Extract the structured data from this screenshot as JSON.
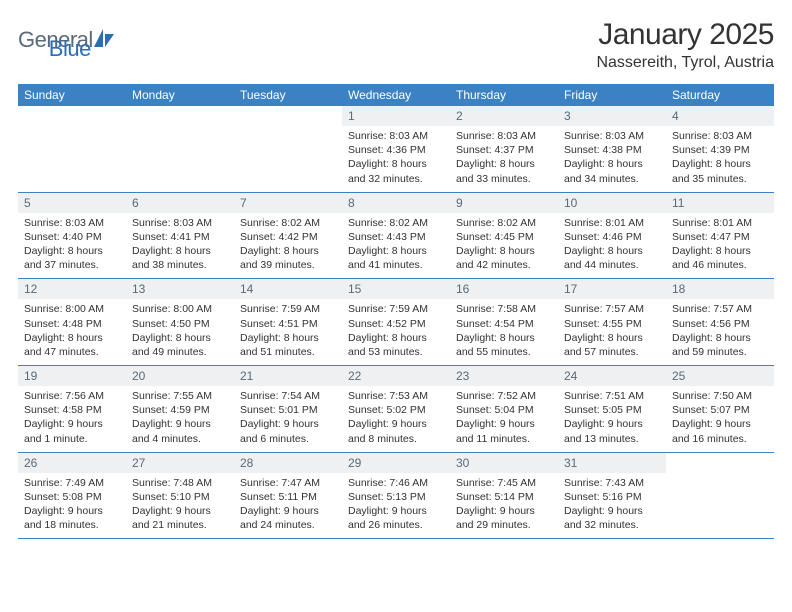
{
  "logo": {
    "text1": "General",
    "text2": "Blue"
  },
  "title": "January 2025",
  "location": "Nassereith, Tyrol, Austria",
  "weekdays": [
    "Sunday",
    "Monday",
    "Tuesday",
    "Wednesday",
    "Thursday",
    "Friday",
    "Saturday"
  ],
  "colors": {
    "header_bg": "#3a82c4",
    "header_text": "#ffffff",
    "daynum_bg": "#eef0f2",
    "daynum_text": "#5a6a78",
    "body_text": "#333333",
    "rule": "#3a82c4"
  },
  "weeks": [
    [
      {
        "n": "",
        "sr": "",
        "ss": "",
        "dl": ""
      },
      {
        "n": "",
        "sr": "",
        "ss": "",
        "dl": ""
      },
      {
        "n": "",
        "sr": "",
        "ss": "",
        "dl": ""
      },
      {
        "n": "1",
        "sr": "8:03 AM",
        "ss": "4:36 PM",
        "dl": "8 hours and 32 minutes."
      },
      {
        "n": "2",
        "sr": "8:03 AM",
        "ss": "4:37 PM",
        "dl": "8 hours and 33 minutes."
      },
      {
        "n": "3",
        "sr": "8:03 AM",
        "ss": "4:38 PM",
        "dl": "8 hours and 34 minutes."
      },
      {
        "n": "4",
        "sr": "8:03 AM",
        "ss": "4:39 PM",
        "dl": "8 hours and 35 minutes."
      }
    ],
    [
      {
        "n": "5",
        "sr": "8:03 AM",
        "ss": "4:40 PM",
        "dl": "8 hours and 37 minutes."
      },
      {
        "n": "6",
        "sr": "8:03 AM",
        "ss": "4:41 PM",
        "dl": "8 hours and 38 minutes."
      },
      {
        "n": "7",
        "sr": "8:02 AM",
        "ss": "4:42 PM",
        "dl": "8 hours and 39 minutes."
      },
      {
        "n": "8",
        "sr": "8:02 AM",
        "ss": "4:43 PM",
        "dl": "8 hours and 41 minutes."
      },
      {
        "n": "9",
        "sr": "8:02 AM",
        "ss": "4:45 PM",
        "dl": "8 hours and 42 minutes."
      },
      {
        "n": "10",
        "sr": "8:01 AM",
        "ss": "4:46 PM",
        "dl": "8 hours and 44 minutes."
      },
      {
        "n": "11",
        "sr": "8:01 AM",
        "ss": "4:47 PM",
        "dl": "8 hours and 46 minutes."
      }
    ],
    [
      {
        "n": "12",
        "sr": "8:00 AM",
        "ss": "4:48 PM",
        "dl": "8 hours and 47 minutes."
      },
      {
        "n": "13",
        "sr": "8:00 AM",
        "ss": "4:50 PM",
        "dl": "8 hours and 49 minutes."
      },
      {
        "n": "14",
        "sr": "7:59 AM",
        "ss": "4:51 PM",
        "dl": "8 hours and 51 minutes."
      },
      {
        "n": "15",
        "sr": "7:59 AM",
        "ss": "4:52 PM",
        "dl": "8 hours and 53 minutes."
      },
      {
        "n": "16",
        "sr": "7:58 AM",
        "ss": "4:54 PM",
        "dl": "8 hours and 55 minutes."
      },
      {
        "n": "17",
        "sr": "7:57 AM",
        "ss": "4:55 PM",
        "dl": "8 hours and 57 minutes."
      },
      {
        "n": "18",
        "sr": "7:57 AM",
        "ss": "4:56 PM",
        "dl": "8 hours and 59 minutes."
      }
    ],
    [
      {
        "n": "19",
        "sr": "7:56 AM",
        "ss": "4:58 PM",
        "dl": "9 hours and 1 minute."
      },
      {
        "n": "20",
        "sr": "7:55 AM",
        "ss": "4:59 PM",
        "dl": "9 hours and 4 minutes."
      },
      {
        "n": "21",
        "sr": "7:54 AM",
        "ss": "5:01 PM",
        "dl": "9 hours and 6 minutes."
      },
      {
        "n": "22",
        "sr": "7:53 AM",
        "ss": "5:02 PM",
        "dl": "9 hours and 8 minutes."
      },
      {
        "n": "23",
        "sr": "7:52 AM",
        "ss": "5:04 PM",
        "dl": "9 hours and 11 minutes."
      },
      {
        "n": "24",
        "sr": "7:51 AM",
        "ss": "5:05 PM",
        "dl": "9 hours and 13 minutes."
      },
      {
        "n": "25",
        "sr": "7:50 AM",
        "ss": "5:07 PM",
        "dl": "9 hours and 16 minutes."
      }
    ],
    [
      {
        "n": "26",
        "sr": "7:49 AM",
        "ss": "5:08 PM",
        "dl": "9 hours and 18 minutes."
      },
      {
        "n": "27",
        "sr": "7:48 AM",
        "ss": "5:10 PM",
        "dl": "9 hours and 21 minutes."
      },
      {
        "n": "28",
        "sr": "7:47 AM",
        "ss": "5:11 PM",
        "dl": "9 hours and 24 minutes."
      },
      {
        "n": "29",
        "sr": "7:46 AM",
        "ss": "5:13 PM",
        "dl": "9 hours and 26 minutes."
      },
      {
        "n": "30",
        "sr": "7:45 AM",
        "ss": "5:14 PM",
        "dl": "9 hours and 29 minutes."
      },
      {
        "n": "31",
        "sr": "7:43 AM",
        "ss": "5:16 PM",
        "dl": "9 hours and 32 minutes."
      },
      {
        "n": "",
        "sr": "",
        "ss": "",
        "dl": ""
      }
    ]
  ],
  "labels": {
    "sunrise": "Sunrise: ",
    "sunset": "Sunset: ",
    "daylight": "Daylight: "
  }
}
